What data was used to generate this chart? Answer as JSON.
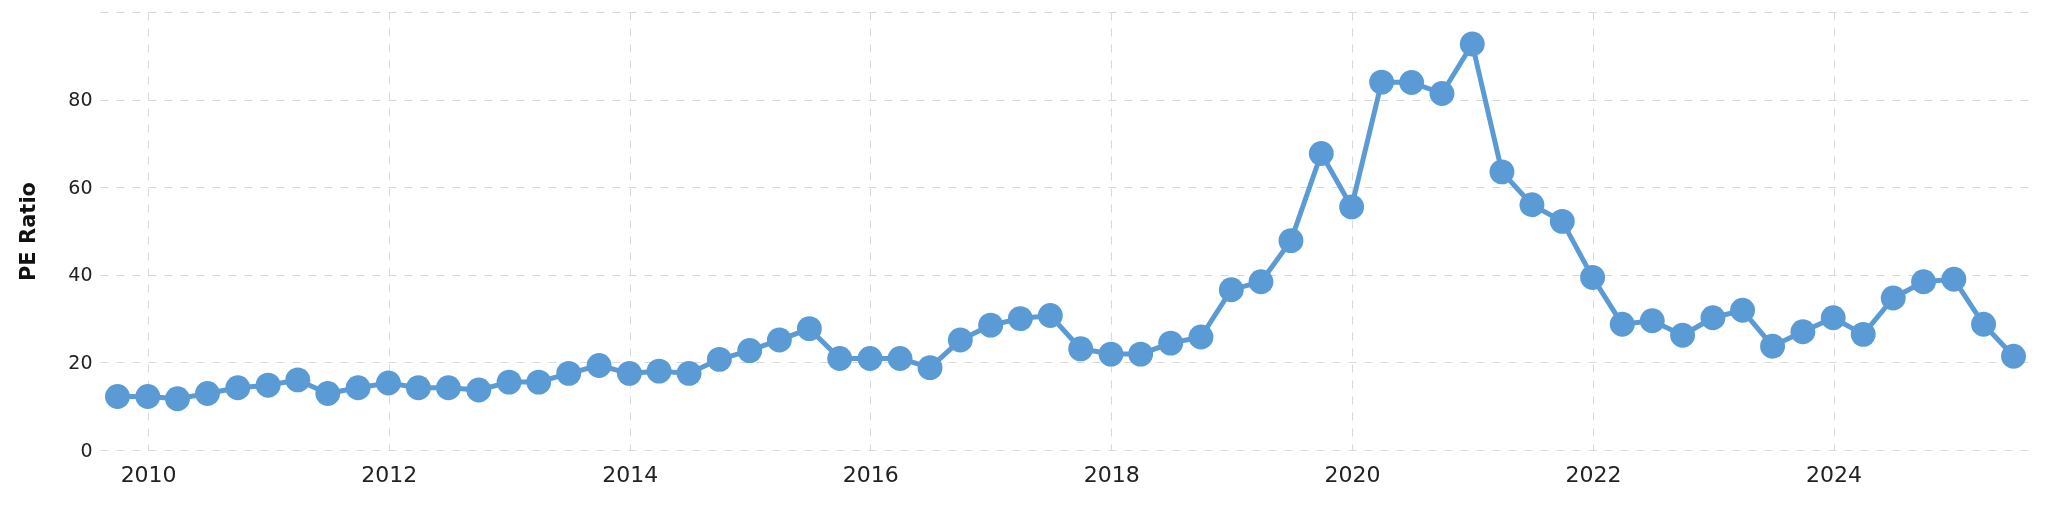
{
  "chart_data": {
    "type": "line",
    "ylabel": "PE Ratio",
    "marker": "circle",
    "grid": true,
    "x": [
      "2009-09-30",
      "2009-12-31",
      "2010-03-31",
      "2010-06-30",
      "2010-09-30",
      "2010-12-31",
      "2011-03-31",
      "2011-06-30",
      "2011-09-30",
      "2011-12-31",
      "2012-03-31",
      "2012-06-30",
      "2012-09-30",
      "2012-12-31",
      "2013-03-31",
      "2013-06-30",
      "2013-09-30",
      "2013-12-31",
      "2014-03-31",
      "2014-06-30",
      "2014-09-30",
      "2014-12-31",
      "2015-03-31",
      "2015-06-30",
      "2015-09-30",
      "2015-12-31",
      "2016-03-31",
      "2016-06-30",
      "2016-09-30",
      "2016-12-31",
      "2017-03-31",
      "2017-06-30",
      "2017-09-30",
      "2017-12-31",
      "2018-03-31",
      "2018-06-30",
      "2018-09-30",
      "2018-12-31",
      "2019-03-31",
      "2019-06-30",
      "2019-09-30",
      "2019-12-31",
      "2020-03-31",
      "2020-06-30",
      "2020-09-30",
      "2020-12-31",
      "2021-03-31",
      "2021-06-30",
      "2021-09-30",
      "2021-12-31",
      "2022-03-31",
      "2022-06-30",
      "2022-09-30",
      "2022-12-31",
      "2023-03-31",
      "2023-06-30",
      "2023-09-30",
      "2023-12-31",
      "2024-03-31",
      "2024-06-30",
      "2024-09-30",
      "2024-12-31",
      "2025-03-31",
      "2025-06-30"
    ],
    "series": [
      {
        "color": "#5b9bd5",
        "values": [
          12.2,
          12.2,
          11.7,
          12.9,
          14.2,
          14.8,
          16.0,
          12.9,
          14.2,
          15.3,
          14.2,
          14.2,
          13.7,
          15.5,
          15.5,
          17.5,
          19.3,
          17.5,
          18.0,
          17.5,
          20.7,
          22.7,
          25.1,
          27.7,
          20.9,
          20.9,
          20.9,
          18.8,
          25.1,
          28.5,
          30.0,
          30.7,
          23.1,
          21.9,
          21.9,
          24.4,
          25.8,
          36.6,
          38.4,
          47.8,
          67.7,
          55.5,
          84.0,
          83.9,
          81.4,
          92.7,
          63.5,
          56.0,
          52.2,
          39.4,
          28.7,
          29.5,
          26.2,
          30.2,
          31.9,
          23.7,
          27.0,
          30.2,
          26.4,
          34.7,
          38.4,
          39.0,
          28.7,
          21.4
        ]
      }
    ],
    "xlim": [
      "2009-08-08",
      "2025-08-22"
    ],
    "xticks": [
      "2010",
      "2012",
      "2014",
      "2016",
      "2018",
      "2020",
      "2022",
      "2024"
    ],
    "ylim": [
      0,
      100
    ],
    "yticks": [
      0,
      20,
      40,
      60,
      80,
      {
        "value": 100,
        "label": null
      }
    ]
  }
}
